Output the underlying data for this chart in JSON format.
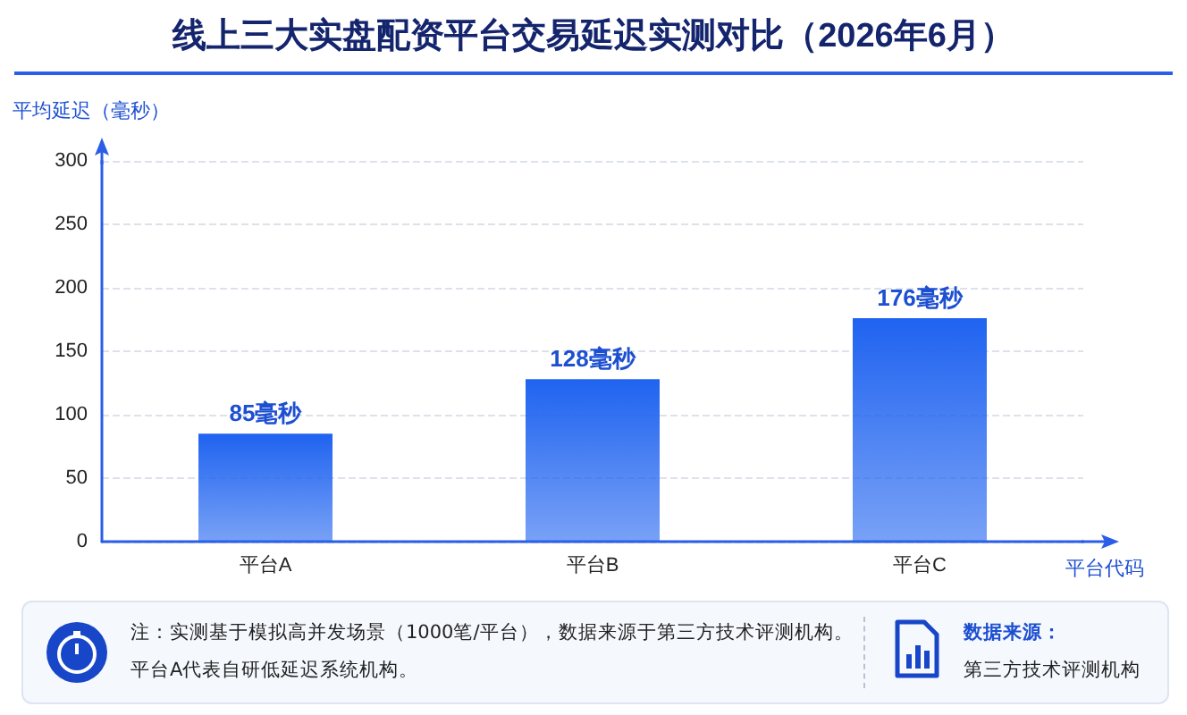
{
  "chart_data": {
    "type": "bar",
    "title": "线上三大实盘配资平台交易延迟实测对比（2026年6月）",
    "ylabel": "平均延迟（毫秒）",
    "xlabel": "平台代码",
    "categories": [
      "平台A",
      "平台B",
      "平台C"
    ],
    "values": [
      85,
      128,
      176
    ],
    "value_labels": [
      "85毫秒",
      "128毫秒",
      "176毫秒"
    ],
    "color": "#1f63f0",
    "ylim": [
      0,
      300
    ],
    "yticks": [
      0,
      50,
      100,
      150,
      200,
      250,
      300
    ],
    "grid": "y",
    "annotations": [
      "注：实测基于模拟高并发场景（1000笔/平台），数据来源于第三方技术评测机构。",
      "平台A代表自研低延迟系统机构。",
      "数据来源：",
      "第三方技术评测机构"
    ]
  }
}
